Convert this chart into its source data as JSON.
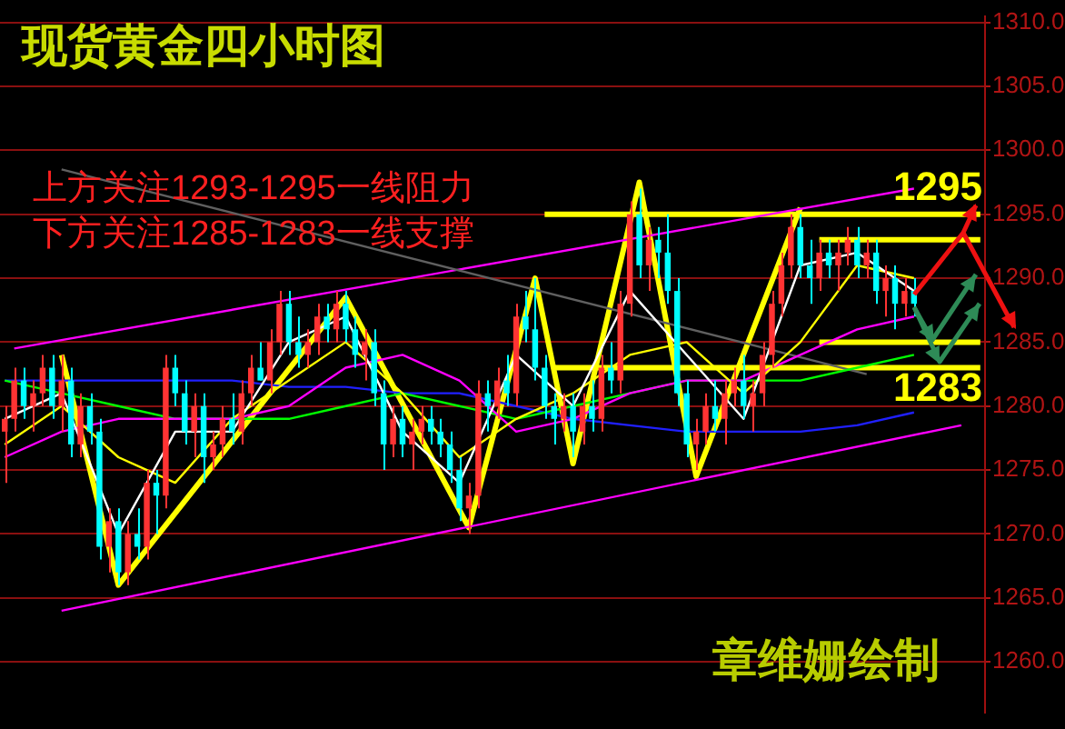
{
  "chart_data": {
    "type": "candlestick",
    "title": "现货黄金四小时图",
    "annotations": [
      "上方关注1293-1295一线阻力",
      "下方关注1285-1283一线支撑",
      "章维姗绘制",
      {
        "text": "1295",
        "y": 1295
      },
      {
        "text": "1283",
        "y": 1283
      }
    ],
    "categories": [
      null,
      null,
      null,
      null,
      null,
      null,
      null,
      null,
      null,
      null,
      null,
      null,
      null,
      null,
      null,
      null,
      null,
      null,
      null,
      null,
      null,
      null,
      null,
      null,
      null,
      null,
      null,
      null,
      null,
      null,
      null,
      null,
      null,
      null,
      null,
      null,
      null,
      null,
      null,
      null,
      null,
      null,
      null,
      null,
      null,
      null,
      null,
      null,
      null,
      null,
      null,
      null,
      null,
      null,
      null,
      null,
      null,
      null,
      null,
      null,
      null,
      null,
      null,
      null,
      null,
      null,
      null,
      null,
      null,
      null,
      null,
      null,
      null,
      null,
      null,
      null,
      null,
      null,
      null,
      null,
      null,
      null,
      null,
      null,
      null,
      null,
      null,
      null,
      null,
      null,
      null,
      null,
      null,
      null,
      null,
      null,
      null,
      null,
      null,
      null,
      null,
      null,
      null,
      null
    ],
    "ohlc": [
      [
        1278,
        1280,
        1274,
        1279
      ],
      [
        1279,
        1283,
        1278,
        1282
      ],
      [
        1282,
        1283,
        1279,
        1280
      ],
      [
        1280,
        1282,
        1278,
        1281
      ],
      [
        1281,
        1284,
        1280,
        1283
      ],
      [
        1283,
        1284,
        1279,
        1280
      ],
      [
        1280,
        1284,
        1278,
        1282
      ],
      [
        1282,
        1283,
        1276,
        1277
      ],
      [
        1277,
        1281,
        1276,
        1280
      ],
      [
        1280,
        1281,
        1277,
        1278
      ],
      [
        1278,
        1279,
        1268,
        1269
      ],
      [
        1269,
        1272,
        1267,
        1271
      ],
      [
        1271,
        1272,
        1266,
        1267
      ],
      [
        1267,
        1271,
        1266,
        1270
      ],
      [
        1270,
        1272,
        1268,
        1269
      ],
      [
        1269,
        1275,
        1268,
        1274
      ],
      [
        1274,
        1275,
        1270,
        1273
      ],
      [
        1273,
        1284,
        1272,
        1283
      ],
      [
        1283,
        1284,
        1280,
        1281
      ],
      [
        1281,
        1282,
        1277,
        1278
      ],
      [
        1278,
        1281,
        1276,
        1280
      ],
      [
        1280,
        1281,
        1274,
        1276
      ],
      [
        1276,
        1278,
        1275,
        1277
      ],
      [
        1277,
        1280,
        1276,
        1279
      ],
      [
        1279,
        1281,
        1277,
        1278
      ],
      [
        1278,
        1282,
        1277,
        1281
      ],
      [
        1281,
        1284,
        1280,
        1283
      ],
      [
        1283,
        1285,
        1282,
        1282
      ],
      [
        1282,
        1286,
        1281,
        1285
      ],
      [
        1285,
        1289,
        1284,
        1288
      ],
      [
        1288,
        1289,
        1284,
        1285
      ],
      [
        1285,
        1287,
        1283,
        1284
      ],
      [
        1284,
        1286,
        1283,
        1285
      ],
      [
        1285,
        1288,
        1284,
        1287
      ],
      [
        1287,
        1288,
        1285,
        1286
      ],
      [
        1286,
        1289,
        1285,
        1288
      ],
      [
        1288,
        1289,
        1285,
        1286
      ],
      [
        1286,
        1287,
        1283,
        1284
      ],
      [
        1284,
        1286,
        1282,
        1285
      ],
      [
        1285,
        1286,
        1280,
        1281
      ],
      [
        1281,
        1282,
        1275,
        1277
      ],
      [
        1277,
        1280,
        1276,
        1279
      ],
      [
        1279,
        1280,
        1276,
        1277
      ],
      [
        1277,
        1279,
        1275,
        1278
      ],
      [
        1278,
        1280,
        1277,
        1279
      ],
      [
        1279,
        1280,
        1277,
        1278
      ],
      [
        1278,
        1279,
        1276,
        1277
      ],
      [
        1277,
        1278,
        1274,
        1275
      ],
      [
        1275,
        1276,
        1271,
        1272
      ],
      [
        1272,
        1274,
        1270,
        1273
      ],
      [
        1273,
        1282,
        1272,
        1281
      ],
      [
        1281,
        1282,
        1278,
        1280
      ],
      [
        1280,
        1283,
        1279,
        1282
      ],
      [
        1282,
        1284,
        1280,
        1281
      ],
      [
        1281,
        1288,
        1280,
        1287
      ],
      [
        1287,
        1289,
        1285,
        1286
      ],
      [
        1286,
        1290,
        1282,
        1283
      ],
      [
        1283,
        1284,
        1279,
        1280
      ],
      [
        1280,
        1281,
        1277,
        1279
      ],
      [
        1279,
        1281,
        1278,
        1280
      ],
      [
        1280,
        1281,
        1276,
        1278
      ],
      [
        1278,
        1281,
        1277,
        1280
      ],
      [
        1280,
        1282,
        1278,
        1279
      ],
      [
        1279,
        1284,
        1278,
        1283
      ],
      [
        1283,
        1285,
        1281,
        1282
      ],
      [
        1282,
        1289,
        1281,
        1288
      ],
      [
        1288,
        1296,
        1287,
        1295
      ],
      [
        1295,
        1297,
        1290,
        1291
      ],
      [
        1291,
        1294,
        1289,
        1293
      ],
      [
        1293,
        1294,
        1290,
        1292
      ],
      [
        1292,
        1295,
        1288,
        1289
      ],
      [
        1289,
        1290,
        1280,
        1281
      ],
      [
        1281,
        1282,
        1276,
        1277
      ],
      [
        1277,
        1279,
        1275,
        1278
      ],
      [
        1278,
        1281,
        1277,
        1280
      ],
      [
        1280,
        1282,
        1278,
        1279
      ],
      [
        1279,
        1282,
        1277,
        1281
      ],
      [
        1281,
        1283,
        1280,
        1282
      ],
      [
        1282,
        1284,
        1279,
        1280
      ],
      [
        1280,
        1282,
        1278,
        1281
      ],
      [
        1281,
        1285,
        1280,
        1284
      ],
      [
        1284,
        1289,
        1283,
        1288
      ],
      [
        1288,
        1292,
        1287,
        1291
      ],
      [
        1291,
        1295,
        1290,
        1294
      ],
      [
        1294,
        1295,
        1290,
        1291
      ],
      [
        1291,
        1293,
        1288,
        1290
      ],
      [
        1290,
        1293,
        1289,
        1292
      ],
      [
        1292,
        1293,
        1290,
        1291
      ],
      [
        1291,
        1293,
        1289,
        1292
      ],
      [
        1292,
        1294,
        1291,
        1293
      ],
      [
        1293,
        1294,
        1290,
        1291
      ],
      [
        1291,
        1293,
        1290,
        1292
      ],
      [
        1292,
        1293,
        1288,
        1289
      ],
      [
        1289,
        1291,
        1287,
        1290
      ],
      [
        1290,
        1291,
        1286,
        1288
      ],
      [
        1288,
        1290,
        1287,
        1289
      ],
      [
        1289,
        1290,
        1287,
        1288
      ],
      null,
      null,
      null,
      null,
      null,
      null,
      null
    ],
    "series": [
      {
        "type": "line",
        "color": "#ffffff",
        "values": [
          1279,
          null,
          null,
          null,
          null,
          null,
          1281,
          null,
          null,
          null,
          null,
          null,
          1270,
          null,
          null,
          null,
          null,
          null,
          1278,
          null,
          null,
          null,
          null,
          null,
          1278,
          null,
          null,
          null,
          null,
          null,
          1285,
          null,
          null,
          null,
          null,
          null,
          1287,
          null,
          null,
          null,
          null,
          null,
          1278,
          null,
          null,
          null,
          null,
          null,
          1274,
          null,
          null,
          null,
          null,
          null,
          1284,
          null,
          null,
          null,
          null,
          null,
          1280,
          null,
          null,
          null,
          null,
          null,
          1289,
          null,
          null,
          null,
          null,
          null,
          1284,
          null,
          null,
          null,
          null,
          null,
          1279,
          null,
          null,
          null,
          null,
          null,
          1291,
          null,
          null,
          null,
          null,
          null,
          1292,
          null,
          null,
          null,
          null,
          null,
          1289,
          null,
          null,
          null,
          null,
          null,
          null,
          null
        ]
      },
      {
        "type": "line",
        "color": "#ffff00",
        "values": [
          1277,
          null,
          null,
          null,
          null,
          null,
          1280,
          null,
          null,
          null,
          null,
          null,
          1276,
          null,
          null,
          null,
          null,
          null,
          1274,
          null,
          null,
          null,
          null,
          null,
          1279,
          null,
          null,
          null,
          null,
          null,
          1282,
          null,
          null,
          null,
          null,
          null,
          1285,
          null,
          null,
          null,
          null,
          null,
          1281,
          null,
          null,
          null,
          null,
          null,
          1276,
          null,
          null,
          null,
          null,
          null,
          1279,
          null,
          null,
          null,
          null,
          null,
          1281,
          null,
          null,
          null,
          null,
          null,
          1284,
          null,
          null,
          null,
          null,
          null,
          1285,
          null,
          null,
          null,
          null,
          null,
          1281,
          null,
          null,
          null,
          null,
          null,
          1285,
          null,
          null,
          null,
          null,
          null,
          1291,
          null,
          null,
          null,
          null,
          null,
          1290,
          null,
          null,
          null,
          null,
          null,
          null,
          null
        ]
      },
      {
        "type": "line",
        "color": "#ff00ff",
        "values": [
          1276,
          null,
          null,
          null,
          null,
          null,
          1278,
          null,
          null,
          null,
          null,
          null,
          1279,
          null,
          null,
          null,
          null,
          null,
          1279,
          null,
          null,
          null,
          null,
          null,
          1279,
          null,
          null,
          null,
          null,
          null,
          1280,
          null,
          null,
          null,
          null,
          null,
          1283,
          null,
          null,
          null,
          null,
          null,
          1284,
          null,
          null,
          null,
          null,
          null,
          1282,
          null,
          null,
          null,
          null,
          null,
          1278,
          null,
          null,
          null,
          null,
          null,
          1279,
          null,
          null,
          null,
          null,
          null,
          1281,
          null,
          null,
          null,
          null,
          null,
          1282,
          null,
          null,
          null,
          null,
          null,
          1282,
          null,
          null,
          null,
          null,
          null,
          1284,
          null,
          null,
          null,
          null,
          null,
          1286,
          null,
          null,
          null,
          null,
          null,
          1287,
          null,
          null,
          null,
          null,
          null,
          null,
          null
        ]
      },
      {
        "type": "line",
        "color": "#00ff00",
        "values": [
          1282,
          null,
          null,
          null,
          null,
          null,
          1281,
          null,
          null,
          null,
          null,
          null,
          1280,
          null,
          null,
          null,
          null,
          null,
          1279,
          null,
          null,
          null,
          null,
          null,
          1279,
          null,
          null,
          null,
          null,
          null,
          1279,
          null,
          null,
          null,
          null,
          null,
          1280,
          null,
          null,
          null,
          null,
          null,
          1281,
          null,
          null,
          null,
          null,
          null,
          1280,
          null,
          null,
          null,
          null,
          null,
          1279,
          null,
          null,
          null,
          null,
          null,
          1280,
          null,
          null,
          null,
          null,
          null,
          1281,
          null,
          null,
          null,
          null,
          null,
          1282,
          null,
          null,
          null,
          null,
          null,
          1282,
          null,
          null,
          null,
          null,
          null,
          1282,
          null,
          null,
          null,
          null,
          null,
          1283,
          null,
          null,
          null,
          null,
          null,
          1284,
          null,
          null,
          null,
          null,
          null,
          null,
          null
        ]
      },
      {
        "type": "line",
        "color": "#2020ff",
        "values": [
          1282,
          null,
          null,
          null,
          null,
          null,
          1282,
          null,
          null,
          null,
          null,
          null,
          1282,
          null,
          null,
          null,
          null,
          null,
          1282,
          null,
          null,
          null,
          null,
          null,
          1282,
          null,
          null,
          null,
          null,
          null,
          1281.5,
          null,
          null,
          null,
          null,
          null,
          1281.5,
          null,
          null,
          null,
          null,
          null,
          1281,
          null,
          null,
          null,
          null,
          null,
          1281,
          null,
          null,
          null,
          null,
          null,
          1280,
          null,
          null,
          null,
          null,
          null,
          1279,
          null,
          null,
          null,
          null,
          null,
          1278.5,
          null,
          null,
          null,
          null,
          null,
          1278,
          null,
          null,
          null,
          null,
          null,
          1278,
          null,
          null,
          null,
          null,
          null,
          1278,
          null,
          null,
          null,
          null,
          null,
          1278.5,
          null,
          null,
          null,
          null,
          null,
          1279.5,
          null,
          null,
          null,
          null,
          null,
          null,
          null
        ]
      },
      {
        "type": "line",
        "color": "#606060",
        "values": [
          null,
          null,
          null,
          null,
          null,
          null,
          1298.5,
          null,
          null,
          null,
          null,
          null,
          null,
          null,
          null,
          null,
          null,
          null,
          null,
          null,
          null,
          null,
          null,
          null,
          null,
          null,
          null,
          null,
          null,
          null,
          null,
          null,
          null,
          null,
          null,
          null,
          null,
          null,
          null,
          null,
          null,
          null,
          null,
          null,
          null,
          null,
          null,
          null,
          null,
          null,
          null,
          null,
          null,
          null,
          null,
          null,
          null,
          null,
          null,
          null,
          null,
          null,
          null,
          null,
          null,
          null,
          null,
          null,
          null,
          null,
          null,
          null,
          null,
          null,
          null,
          null,
          null,
          null,
          null,
          null,
          null,
          null,
          null,
          null,
          null,
          null,
          null,
          null,
          null,
          null,
          null,
          1282.5,
          null,
          null,
          null,
          null,
          null,
          null,
          null,
          null,
          null,
          null,
          null,
          null
        ]
      },
      {
        "type": "line",
        "color": "#ff00ff",
        "values": [
          null,
          1284.5,
          null,
          null,
          null,
          null,
          null,
          null,
          null,
          null,
          null,
          null,
          null,
          null,
          null,
          null,
          null,
          null,
          null,
          null,
          null,
          null,
          null,
          null,
          null,
          null,
          null,
          null,
          null,
          null,
          null,
          null,
          null,
          null,
          null,
          null,
          null,
          null,
          null,
          null,
          null,
          null,
          null,
          null,
          null,
          null,
          null,
          null,
          null,
          null,
          null,
          null,
          null,
          null,
          null,
          null,
          null,
          null,
          null,
          null,
          null,
          null,
          null,
          null,
          null,
          null,
          null,
          null,
          null,
          null,
          null,
          null,
          null,
          null,
          null,
          null,
          null,
          null,
          null,
          null,
          null,
          null,
          null,
          null,
          null,
          null,
          null,
          null,
          null,
          null,
          null,
          null,
          null,
          null,
          null,
          null,
          1297,
          null,
          null,
          null,
          null,
          null,
          null,
          null
        ]
      },
      {
        "type": "line",
        "color": "#ff00ff",
        "values": [
          null,
          null,
          null,
          null,
          null,
          null,
          1264,
          null,
          null,
          null,
          null,
          null,
          null,
          null,
          null,
          null,
          null,
          null,
          null,
          null,
          null,
          null,
          null,
          null,
          null,
          null,
          null,
          null,
          null,
          null,
          null,
          null,
          null,
          null,
          null,
          null,
          null,
          null,
          null,
          null,
          null,
          null,
          null,
          null,
          null,
          null,
          null,
          null,
          null,
          null,
          null,
          null,
          null,
          null,
          null,
          null,
          null,
          null,
          null,
          null,
          null,
          null,
          null,
          null,
          null,
          null,
          null,
          null,
          null,
          null,
          null,
          null,
          null,
          null,
          null,
          null,
          null,
          null,
          null,
          null,
          null,
          null,
          null,
          null,
          null,
          null,
          null,
          null,
          null,
          null,
          null,
          null,
          null,
          null,
          null,
          null,
          null,
          null,
          null,
          null,
          null,
          1278.5,
          null,
          null
        ]
      },
      {
        "type": "line",
        "color": "#ffff00",
        "values": [
          null,
          null,
          null,
          null,
          null,
          null,
          1284,
          null,
          null,
          null,
          null,
          null,
          1266,
          null,
          null,
          null,
          null,
          null,
          null,
          null,
          null,
          null,
          null,
          null,
          null,
          null,
          null,
          null,
          null,
          null,
          null,
          null,
          null,
          null,
          null,
          null,
          1288.5,
          null,
          null,
          null,
          null,
          null,
          null,
          null,
          null,
          null,
          null,
          null,
          null,
          1270.5,
          null,
          null,
          null,
          null,
          null,
          null,
          1290,
          null,
          null,
          null,
          1275.5,
          null,
          null,
          null,
          null,
          null,
          null,
          1297.5,
          null,
          null,
          null,
          null,
          null,
          1274.5,
          null,
          null,
          null,
          null,
          null,
          null,
          null,
          null,
          null,
          null,
          1295.5,
          null,
          null,
          null,
          null,
          null,
          null,
          null,
          null,
          null,
          null,
          null,
          null,
          null,
          null,
          null,
          null,
          null,
          null,
          null
        ]
      },
      {
        "type": "line",
        "color": "#ffff00",
        "values": [
          null,
          null,
          null,
          null,
          null,
          null,
          null,
          null,
          null,
          null,
          null,
          null,
          null,
          null,
          null,
          null,
          null,
          null,
          null,
          null,
          null,
          null,
          null,
          null,
          null,
          null,
          null,
          null,
          null,
          null,
          null,
          null,
          null,
          null,
          null,
          null,
          null,
          null,
          null,
          null,
          null,
          null,
          null,
          null,
          null,
          null,
          null,
          null,
          null,
          null,
          null,
          null,
          null,
          null,
          null,
          null,
          null,
          1295,
          null,
          null,
          null,
          null,
          null,
          null,
          null,
          null,
          null,
          null,
          null,
          null,
          null,
          null,
          null,
          null,
          null,
          null,
          null,
          null,
          null,
          null,
          null,
          null,
          null,
          null,
          null,
          null,
          null,
          null,
          null,
          null,
          null,
          null,
          null,
          null,
          null,
          null,
          null,
          null,
          null,
          null,
          null,
          null,
          null,
          1295
        ]
      },
      {
        "type": "line",
        "color": "#ffff00",
        "values": [
          null,
          null,
          null,
          null,
          null,
          null,
          null,
          null,
          null,
          null,
          null,
          null,
          null,
          null,
          null,
          null,
          null,
          null,
          null,
          null,
          null,
          null,
          null,
          null,
          null,
          null,
          null,
          null,
          null,
          null,
          null,
          null,
          null,
          null,
          null,
          null,
          null,
          null,
          null,
          null,
          null,
          null,
          null,
          null,
          null,
          null,
          null,
          null,
          null,
          null,
          null,
          null,
          null,
          null,
          null,
          null,
          null,
          null,
          1283,
          null,
          null,
          null,
          null,
          null,
          null,
          null,
          null,
          null,
          null,
          null,
          null,
          null,
          null,
          null,
          null,
          null,
          null,
          null,
          null,
          null,
          null,
          null,
          null,
          null,
          null,
          null,
          null,
          null,
          null,
          null,
          null,
          null,
          null,
          null,
          null,
          null,
          null,
          null,
          null,
          null,
          null,
          null,
          null,
          1283
        ]
      },
      {
        "type": "line",
        "color": "#ffff00",
        "values": [
          null,
          null,
          null,
          null,
          null,
          null,
          null,
          null,
          null,
          null,
          null,
          null,
          null,
          null,
          null,
          null,
          null,
          null,
          null,
          null,
          null,
          null,
          null,
          null,
          null,
          null,
          null,
          null,
          null,
          null,
          null,
          null,
          null,
          null,
          null,
          null,
          null,
          null,
          null,
          null,
          null,
          null,
          null,
          null,
          null,
          null,
          null,
          null,
          null,
          null,
          null,
          null,
          null,
          null,
          null,
          null,
          null,
          null,
          null,
          null,
          null,
          null,
          null,
          null,
          null,
          null,
          null,
          null,
          null,
          null,
          null,
          null,
          null,
          null,
          null,
          null,
          null,
          null,
          null,
          null,
          null,
          null,
          null,
          null,
          null,
          null,
          1293,
          null,
          null,
          null,
          null,
          null,
          null,
          null,
          null,
          null,
          null,
          null,
          null,
          null,
          null,
          null,
          null,
          1293
        ]
      },
      {
        "type": "line",
        "color": "#ffff00",
        "values": [
          null,
          null,
          null,
          null,
          null,
          null,
          null,
          null,
          null,
          null,
          null,
          null,
          null,
          null,
          null,
          null,
          null,
          null,
          null,
          null,
          null,
          null,
          null,
          null,
          null,
          null,
          null,
          null,
          null,
          null,
          null,
          null,
          null,
          null,
          null,
          null,
          null,
          null,
          null,
          null,
          null,
          null,
          null,
          null,
          null,
          null,
          null,
          null,
          null,
          null,
          null,
          null,
          null,
          null,
          null,
          null,
          null,
          null,
          null,
          null,
          null,
          null,
          null,
          null,
          null,
          null,
          null,
          null,
          null,
          null,
          null,
          null,
          null,
          null,
          null,
          null,
          null,
          null,
          null,
          null,
          null,
          null,
          null,
          null,
          null,
          null,
          1285,
          null,
          null,
          null,
          null,
          null,
          null,
          null,
          null,
          null,
          null,
          null,
          null,
          null,
          null,
          null,
          null,
          1285
        ]
      }
    ],
    "ylim": [
      1256,
      1310.5
    ],
    "yticks": [
      {
        "value": 1260,
        "label": "1260.0"
      },
      {
        "value": 1265,
        "label": "1265.0"
      },
      {
        "value": 1270,
        "label": "1270.0"
      },
      {
        "value": 1275,
        "label": "1275.0"
      },
      {
        "value": 1280,
        "label": "1280.0"
      },
      {
        "value": 1285,
        "label": "1285.0"
      },
      {
        "value": 1290,
        "label": "1290.0"
      },
      {
        "value": 1295,
        "label": "1295.0"
      },
      {
        "value": 1300,
        "label": "1300.0"
      },
      {
        "value": 1305,
        "label": "1305.0"
      },
      {
        "value": 1310,
        "label": "1310.0"
      }
    ],
    "grid": "y"
  }
}
